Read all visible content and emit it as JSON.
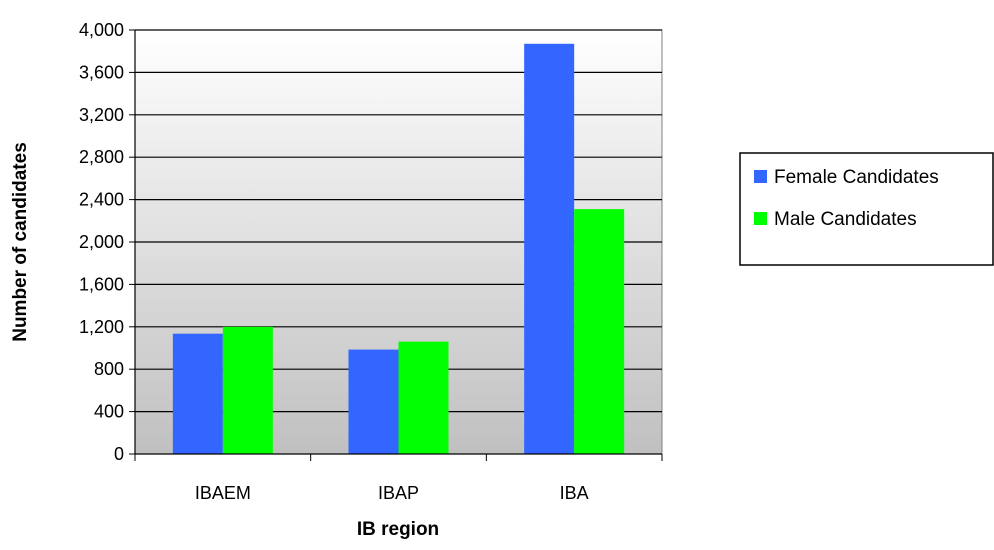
{
  "chart_data": {
    "type": "bar",
    "categories": [
      "IBAEM",
      "IBAP",
      "IBA"
    ],
    "series": [
      {
        "name": "Female Candidates",
        "values": [
          1135,
          985,
          3870
        ],
        "color": "#3366ff"
      },
      {
        "name": "Male Candidates",
        "values": [
          1200,
          1060,
          2310
        ],
        "color": "#00ff00"
      }
    ],
    "xlabel": "IB region",
    "ylabel": "Number of candidates",
    "ylim": [
      0,
      4000
    ],
    "yticks": [
      0,
      400,
      800,
      1200,
      1600,
      2000,
      2400,
      2800,
      3200,
      3600,
      4000
    ],
    "ytick_labels": [
      "0",
      "400",
      "800",
      "1,200",
      "1,600",
      "2,000",
      "2,400",
      "2,800",
      "3,200",
      "3,600",
      "4,000"
    ],
    "grid": true,
    "legend_position": "right",
    "plot_background": "gradient white to gray"
  }
}
